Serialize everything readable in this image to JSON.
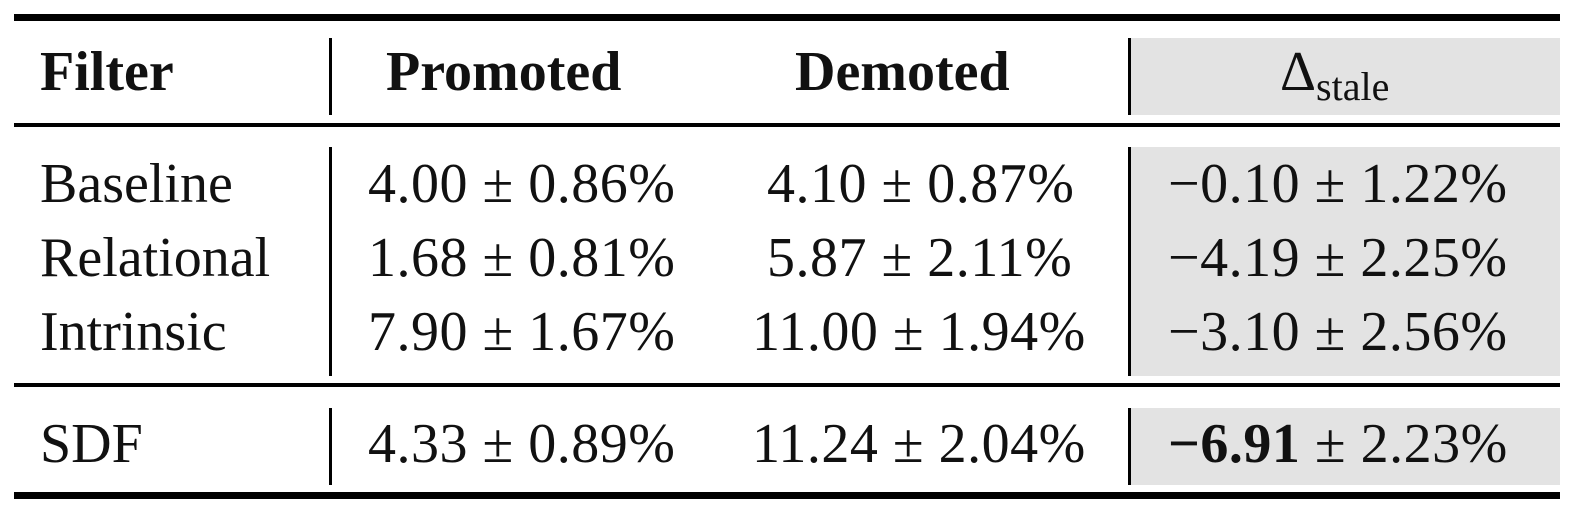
{
  "table": {
    "headers": {
      "filter": "Filter",
      "promoted": "Promoted",
      "demoted": "Demoted",
      "delta_symbol": "Δ",
      "delta_subscript": "stale"
    },
    "rows": [
      {
        "filter": "Baseline",
        "promoted": "4.00 ± 0.86%",
        "demoted": "4.10 ± 0.87%",
        "delta": "−0.10 ± 1.22%"
      },
      {
        "filter": "Relational",
        "promoted": "1.68 ± 0.81%",
        "demoted": "5.87 ± 2.11%",
        "delta": "−4.19 ± 2.25%"
      },
      {
        "filter": "Intrinsic",
        "promoted": "7.90 ± 1.67%",
        "demoted": "11.00 ± 1.94%",
        "delta": "−3.10 ± 2.56%"
      }
    ],
    "final_row": {
      "filter": "SDF",
      "promoted": "4.33 ± 0.89%",
      "demoted": "11.24 ± 2.04%",
      "delta_bold": "−6.91",
      "delta_rest": " ± 2.23%"
    },
    "colors": {
      "highlight_column": "#e3e3e3",
      "rules": "#000000"
    }
  }
}
